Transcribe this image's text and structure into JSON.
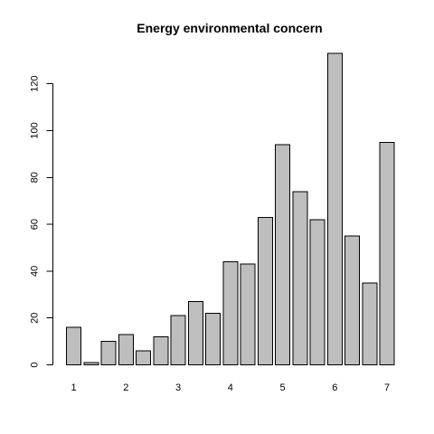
{
  "chart_data": {
    "type": "bar",
    "title": "Energy environmental concern",
    "xlabel": "",
    "ylabel": "",
    "ylim": [
      0,
      133
    ],
    "yticks": [
      0,
      20,
      40,
      60,
      80,
      100,
      120
    ],
    "x": [
      1,
      1.33,
      1.67,
      2,
      2.33,
      2.67,
      3,
      3.33,
      3.67,
      4,
      4.33,
      4.67,
      5,
      5.33,
      5.67,
      6,
      6.33,
      6.67,
      7
    ],
    "xticks": [
      1,
      2,
      3,
      4,
      5,
      6,
      7
    ],
    "values": [
      16,
      1,
      10,
      13,
      6,
      12,
      21,
      27,
      22,
      44,
      43,
      63,
      94,
      74,
      62,
      133,
      55,
      35,
      95
    ],
    "bar_color": "#bebebe",
    "grid": false
  }
}
